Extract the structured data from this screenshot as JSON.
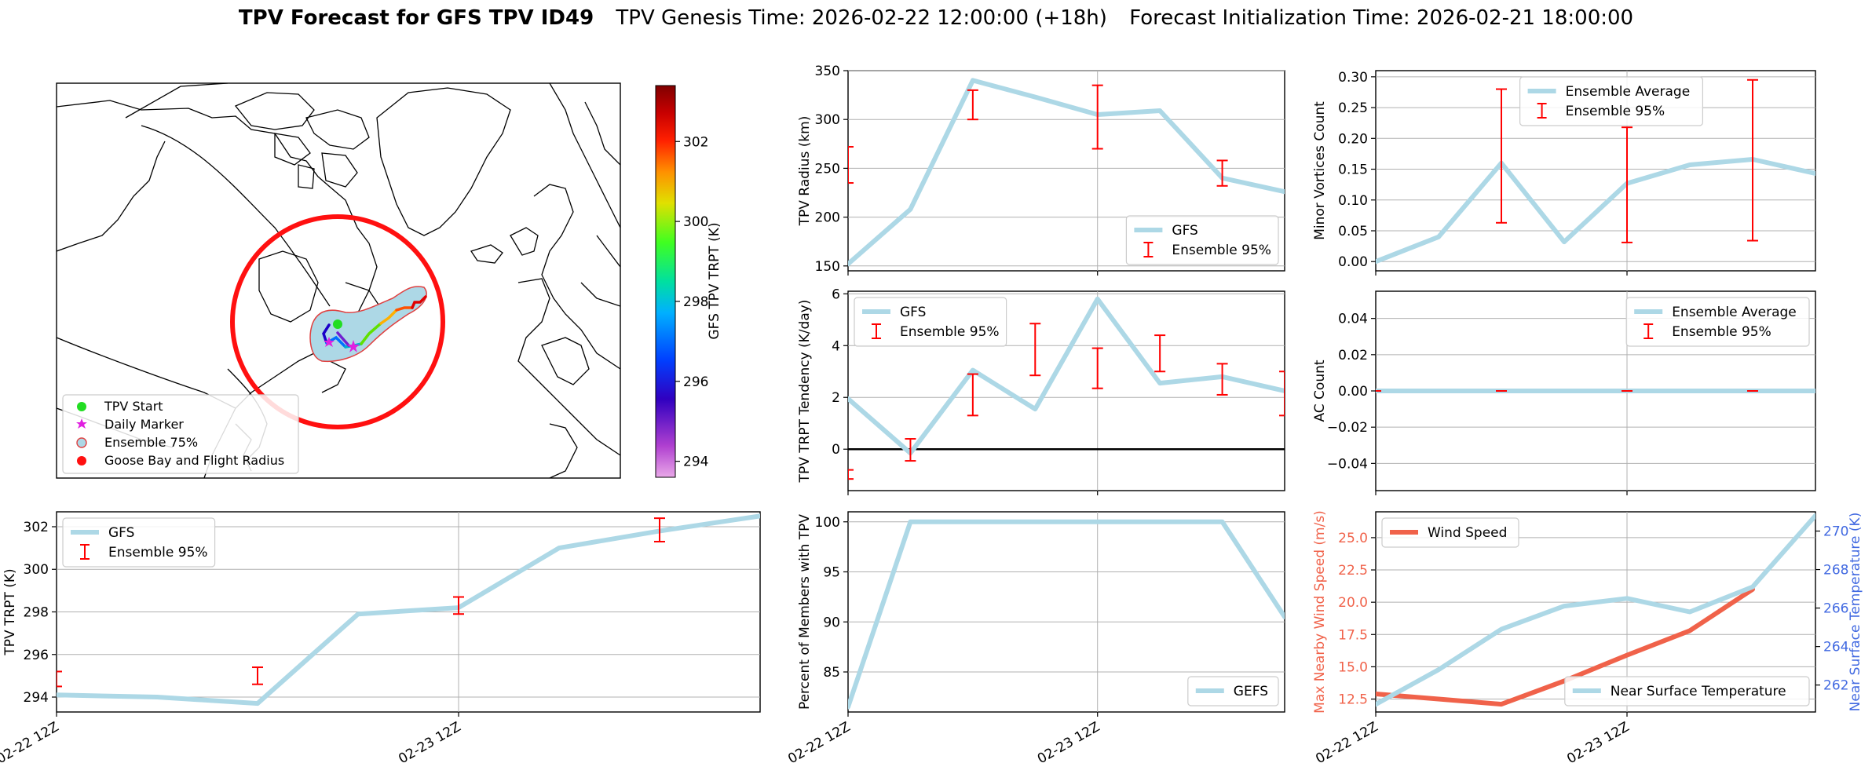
{
  "header": {
    "title_bold": "TPV Forecast for GFS TPV ID49",
    "genesis": "TPV Genesis Time: 2026-02-22 12:00:00 (+18h)",
    "init": "Forecast Initialization Time: 2026-02-21 18:00:00"
  },
  "colors": {
    "gfs_line": "#add8e6",
    "error_bar": "#ff0000",
    "wind_line": "#f0624a",
    "temp_axis": "#4169e1",
    "grid": "#b0b0b0"
  },
  "map": {
    "colorbar_label": "GFS TPV TRPT (K)",
    "colorbar_ticks": [
      "302",
      "300",
      "298",
      "296",
      "294"
    ],
    "colorbar_tick_values": [
      302,
      300,
      298,
      296,
      294
    ],
    "colorbar_range": [
      293.6,
      303.4
    ],
    "legend": [
      {
        "label": "TPV Start",
        "icon": "green-circle"
      },
      {
        "label": "Daily Marker",
        "icon": "magenta-star"
      },
      {
        "label": "Ensemble 75%",
        "icon": "lightblue-circle"
      },
      {
        "label": "Goose Bay and Flight Radius",
        "icon": "red-circle"
      }
    ]
  },
  "chart_data": [
    {
      "id": "radius",
      "type": "line",
      "ylabel": "TPV Radius (km)",
      "ylim": [
        145,
        350
      ],
      "yticks": [
        "350",
        "300",
        "250",
        "200",
        "150"
      ],
      "ytick_values": [
        350,
        300,
        250,
        200,
        150
      ],
      "xlim": [
        0,
        7
      ],
      "grid": true,
      "legend_position": "lower-right",
      "series": [
        {
          "name": "GFS",
          "x": [
            0,
            1,
            2,
            3,
            4,
            5,
            6,
            7
          ],
          "values": [
            152,
            208,
            340,
            323,
            305,
            309,
            240,
            226
          ]
        }
      ],
      "error_bars": {
        "name": "Ensemble 95%",
        "x": [
          0,
          2,
          4,
          6
        ],
        "low": [
          235,
          300,
          270,
          232
        ],
        "high": [
          272,
          330,
          335,
          258
        ]
      }
    },
    {
      "id": "minor",
      "type": "line",
      "ylabel": "Minor Vortices Count",
      "ylim": [
        -0.015,
        0.31
      ],
      "yticks": [
        "0.30",
        "0.25",
        "0.20",
        "0.15",
        "0.10",
        "0.05",
        "0.00"
      ],
      "ytick_values": [
        0.3,
        0.25,
        0.2,
        0.15,
        0.1,
        0.05,
        0.0
      ],
      "xlim": [
        0,
        7
      ],
      "grid": true,
      "legend_position": "upper-center",
      "series": [
        {
          "name": "Ensemble Average",
          "x": [
            0,
            1,
            2,
            3,
            4,
            5,
            6,
            7
          ],
          "values": [
            0.0,
            0.04,
            0.16,
            0.032,
            0.127,
            0.157,
            0.166,
            0.143
          ]
        }
      ],
      "error_bars": {
        "name": "Ensemble 95%",
        "x": [
          2,
          4,
          6
        ],
        "low": [
          0.063,
          0.031,
          0.034
        ],
        "high": [
          0.28,
          0.218,
          0.295
        ]
      }
    },
    {
      "id": "tendency",
      "type": "line",
      "ylabel": "TPV TRPT Tendency (K/day)",
      "ylim": [
        -1.6,
        6.1
      ],
      "yticks": [
        "6",
        "4",
        "2",
        "0"
      ],
      "ytick_values": [
        6,
        4,
        2,
        0
      ],
      "xlim": [
        0,
        7
      ],
      "grid": true,
      "zero_line": true,
      "legend_position": "upper-left",
      "series": [
        {
          "name": "GFS",
          "x": [
            0,
            1,
            2,
            3,
            4,
            5,
            6,
            7
          ],
          "values": [
            1.95,
            -0.15,
            3.05,
            1.55,
            5.8,
            2.55,
            2.8,
            2.25
          ]
        }
      ],
      "error_bars": {
        "name": "Ensemble 95%",
        "x": [
          0,
          1,
          2,
          3,
          4,
          5,
          6,
          7
        ],
        "low": [
          -1.15,
          -0.45,
          1.3,
          2.85,
          2.35,
          3.0,
          2.1,
          1.3
        ],
        "high": [
          -0.8,
          0.4,
          2.9,
          4.85,
          3.9,
          4.4,
          3.3,
          3.0
        ]
      }
    },
    {
      "id": "ac",
      "type": "line",
      "ylabel": "AC Count",
      "ylim": [
        -0.055,
        0.055
      ],
      "yticks": [
        "0.04",
        "0.02",
        "0.00",
        "−0.02",
        "−0.04"
      ],
      "ytick_values": [
        0.04,
        0.02,
        0.0,
        -0.02,
        -0.04
      ],
      "xlim": [
        0,
        7
      ],
      "grid": true,
      "legend_position": "upper-right",
      "series": [
        {
          "name": "Ensemble Average",
          "x": [
            0,
            1,
            2,
            3,
            4,
            5,
            6,
            7
          ],
          "values": [
            0,
            0,
            0,
            0,
            0,
            0,
            0,
            0
          ]
        }
      ],
      "error_bars": {
        "name": "Ensemble 95%",
        "x": [
          0,
          2,
          4,
          6
        ],
        "low": [
          0,
          0,
          0,
          0
        ],
        "high": [
          0,
          0,
          0,
          0
        ]
      }
    },
    {
      "id": "trpt",
      "type": "line",
      "ylabel": "TPV TRPT (K)",
      "ylim": [
        293.3,
        302.7
      ],
      "yticks": [
        "302",
        "300",
        "298",
        "296",
        "294"
      ],
      "ytick_values": [
        302,
        300,
        298,
        296,
        294
      ],
      "xlim": [
        0,
        7
      ],
      "xticks": [
        "02-22 12Z",
        "02-23 12Z"
      ],
      "xtick_values": [
        0,
        4
      ],
      "grid": true,
      "legend_position": "upper-left",
      "series": [
        {
          "name": "GFS",
          "x": [
            0,
            1,
            2,
            3,
            4,
            5,
            6,
            7
          ],
          "values": [
            294.1,
            294.0,
            293.7,
            297.9,
            298.2,
            301.0,
            301.8,
            302.5
          ]
        }
      ],
      "error_bars": {
        "name": "Ensemble 95%",
        "x": [
          0,
          2,
          4,
          6
        ],
        "low": [
          294.5,
          294.6,
          297.9,
          301.3
        ],
        "high": [
          295.2,
          295.4,
          298.7,
          302.4
        ]
      }
    },
    {
      "id": "members",
      "type": "line",
      "ylabel": "Percent of Members with TPV",
      "ylim": [
        81,
        101
      ],
      "yticks": [
        "100",
        "95",
        "90",
        "85"
      ],
      "ytick_values": [
        100,
        95,
        90,
        85
      ],
      "xlim": [
        0,
        7
      ],
      "xticks": [
        "02-22 12Z",
        "02-23 12Z"
      ],
      "xtick_values": [
        0,
        4
      ],
      "grid": true,
      "legend_position": "lower-right",
      "series": [
        {
          "name": "GEFS",
          "x": [
            0,
            1,
            2,
            3,
            4,
            5,
            6,
            7
          ],
          "values": [
            81.5,
            100,
            100,
            100,
            100,
            100,
            100,
            90.5
          ]
        }
      ]
    },
    {
      "id": "wind",
      "type": "line",
      "ylabel": "Max Nearby Wind Speed (m/s)",
      "ylim": [
        11.5,
        27
      ],
      "yticks": [
        "25.0",
        "22.5",
        "20.0",
        "17.5",
        "15.0",
        "12.5"
      ],
      "ytick_values": [
        25,
        22.5,
        20,
        17.5,
        15,
        12.5
      ],
      "y2label": "Near Surface Temperature (K)",
      "y2lim": [
        260.6,
        271.0
      ],
      "y2ticks": [
        "270",
        "268",
        "266",
        "264",
        "262"
      ],
      "y2tick_values": [
        270,
        268,
        266,
        264,
        262
      ],
      "xlim": [
        0,
        7
      ],
      "xticks": [
        "02-22 12Z",
        "02-23 12Z"
      ],
      "xtick_values": [
        0,
        4
      ],
      "grid": true,
      "series": [
        {
          "name": "Wind Speed",
          "axis": "left",
          "x": [
            0,
            1,
            2,
            3,
            4,
            5,
            6
          ],
          "values": [
            12.9,
            12.5,
            12.1,
            13.9,
            15.9,
            17.8,
            21.0
          ]
        },
        {
          "name": "Near Surface Temperature",
          "axis": "right",
          "x": [
            0,
            1,
            2,
            3,
            4,
            5,
            6,
            7
          ],
          "values": [
            261.0,
            262.8,
            264.9,
            266.1,
            266.5,
            265.8,
            267.1,
            270.8
          ]
        }
      ],
      "legend_wind_position": "upper-left",
      "legend_temp_position": "lower-right"
    }
  ],
  "legend_labels": {
    "ensemble_95": "Ensemble 95%"
  }
}
